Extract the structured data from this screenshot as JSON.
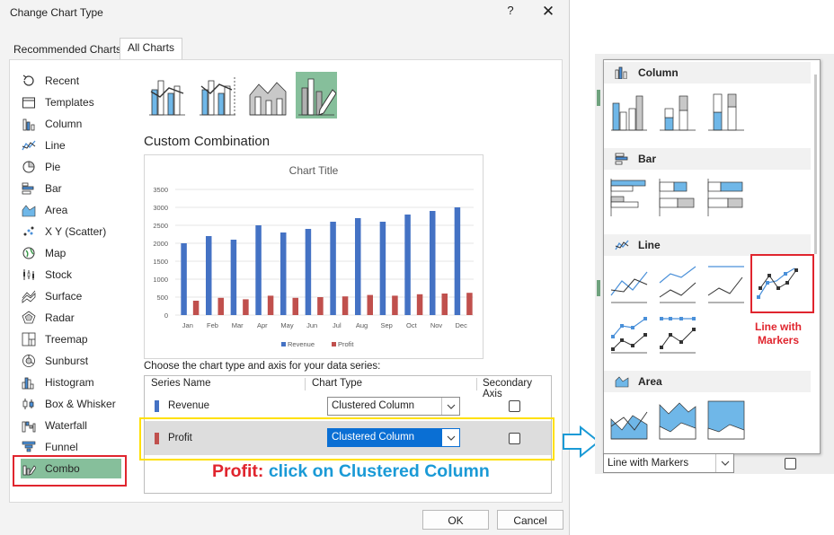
{
  "dialog": {
    "title": "Change Chart Type",
    "help": "?",
    "close": "✕",
    "tabs": [
      "Recommended Charts",
      "All Charts"
    ],
    "chart_types": [
      {
        "label": "Recent",
        "icon": "recent-icon"
      },
      {
        "label": "Templates",
        "icon": "templates-icon"
      },
      {
        "label": "Column",
        "icon": "column-chart-icon"
      },
      {
        "label": "Line",
        "icon": "line-chart-icon"
      },
      {
        "label": "Pie",
        "icon": "pie-chart-icon"
      },
      {
        "label": "Bar",
        "icon": "bar-chart-icon"
      },
      {
        "label": "Area",
        "icon": "area-chart-icon"
      },
      {
        "label": "X Y (Scatter)",
        "icon": "scatter-chart-icon"
      },
      {
        "label": "Map",
        "icon": "map-chart-icon"
      },
      {
        "label": "Stock",
        "icon": "stock-chart-icon"
      },
      {
        "label": "Surface",
        "icon": "surface-chart-icon"
      },
      {
        "label": "Radar",
        "icon": "radar-chart-icon"
      },
      {
        "label": "Treemap",
        "icon": "treemap-chart-icon"
      },
      {
        "label": "Sunburst",
        "icon": "sunburst-chart-icon"
      },
      {
        "label": "Histogram",
        "icon": "histogram-chart-icon"
      },
      {
        "label": "Box & Whisker",
        "icon": "box-whisker-icon"
      },
      {
        "label": "Waterfall",
        "icon": "waterfall-chart-icon"
      },
      {
        "label": "Funnel",
        "icon": "funnel-chart-icon"
      },
      {
        "label": "Combo",
        "icon": "combo-chart-icon"
      }
    ],
    "selected_type": "Combo",
    "subtypes": [
      "clustered-column-line",
      "clustered-column-line-secondary",
      "stacked-area-clustered-column",
      "custom-combination"
    ],
    "custom_title": "Custom Combination",
    "choose_label": "Choose the chart type and axis for your data series:",
    "table": {
      "headers": [
        "Series Name",
        "Chart Type",
        "Secondary Axis"
      ],
      "rows": [
        {
          "name": "Revenue",
          "type": "Clustered Column",
          "secondary": false,
          "color": "#4472c4"
        },
        {
          "name": "Profit",
          "type": "Clustered Column",
          "secondary": false,
          "color": "#c0504d"
        }
      ]
    },
    "ok": "OK",
    "cancel": "Cancel"
  },
  "annotation": {
    "part1": "Profit:",
    "part2": " click on Clustered Column",
    "color1": "#e0252e",
    "color2": "#1a9ad6"
  },
  "chart_data": {
    "type": "bar",
    "title": "Chart Title",
    "categories": [
      "Jan",
      "Feb",
      "Mar",
      "Apr",
      "May",
      "Jun",
      "Jul",
      "Aug",
      "Sep",
      "Oct",
      "Nov",
      "Dec"
    ],
    "series": [
      {
        "name": "Revenue",
        "values": [
          2000,
          2200,
          2100,
          2500,
          2300,
          2400,
          2600,
          2700,
          2600,
          2800,
          2900,
          3000
        ],
        "color": "#4472c4"
      },
      {
        "name": "Profit",
        "values": [
          400,
          480,
          440,
          540,
          480,
          500,
          520,
          560,
          540,
          580,
          600,
          620
        ],
        "color": "#c0504d"
      }
    ],
    "yticks": [
      "3500",
      "3000",
      "2500",
      "2000",
      "1500",
      "1000",
      "500",
      "0"
    ],
    "ylim": [
      0,
      3500
    ],
    "legend": "bottom"
  },
  "panel": {
    "sections": [
      {
        "title": "Column",
        "icon": "column-section-icon"
      },
      {
        "title": "Bar",
        "icon": "bar-section-icon"
      },
      {
        "title": "Line",
        "icon": "line-section-icon"
      },
      {
        "title": "Area",
        "icon": "area-section-icon"
      }
    ],
    "highlight_label_1": "Line with",
    "highlight_label_2": "Markers",
    "bottom_select": "Line with Markers"
  }
}
